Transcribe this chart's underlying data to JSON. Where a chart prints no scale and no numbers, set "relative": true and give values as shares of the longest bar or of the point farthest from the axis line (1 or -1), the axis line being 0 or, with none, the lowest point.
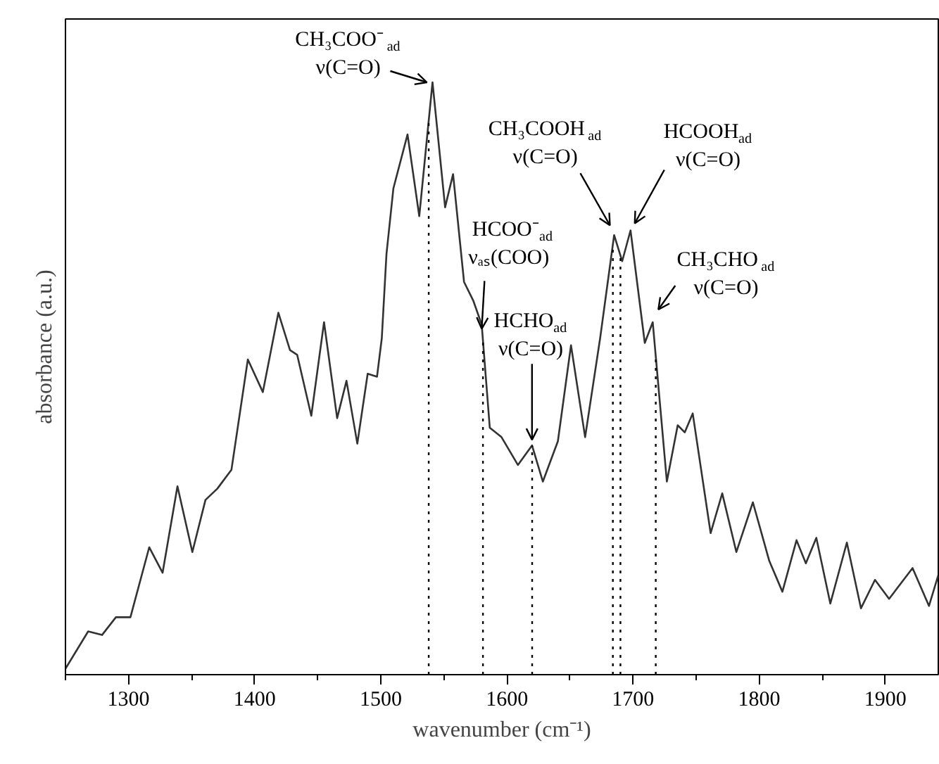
{
  "chart_data": {
    "type": "line",
    "relative": true,
    "xlabel": "wavenumber (cm⁻¹)",
    "ylabel": "absorbance (a.u.)",
    "xlim": [
      1250,
      1942
    ],
    "xticks": [
      {
        "value": 1250,
        "label": null
      },
      1300,
      {
        "value": 1350,
        "label": null
      },
      1400,
      {
        "value": 1450,
        "label": null
      },
      1500,
      {
        "value": 1550,
        "label": null
      },
      1600,
      {
        "value": 1650,
        "label": null
      },
      1700,
      {
        "value": 1750,
        "label": null
      },
      1800,
      {
        "value": 1850,
        "label": null
      },
      1900
    ],
    "grid": false,
    "marker": "none",
    "line_style": "solid",
    "series": [
      {
        "color": "#333333",
        "x": [
          1250,
          1268,
          1279,
          1290,
          1301.5,
          1316.4,
          1327,
          1338.8,
          1350.6,
          1361,
          1370.4,
          1381.6,
          1394.6,
          1406.5,
          1418.8,
          1428,
          1433.7,
          1444.9,
          1455,
          1465.4,
          1472.8,
          1481.4,
          1489.6,
          1497,
          1500.8,
          1504.5,
          1510,
          1521.2,
          1530.5,
          1541,
          1551,
          1557.3,
          1566,
          1573.4,
          1580,
          1586.4,
          1595.7,
          1608.7,
          1619.9,
          1628.5,
          1640.4,
          1650.8,
          1662,
          1673.9,
          1685,
          1691.4,
          1698,
          1709.3,
          1715.6,
          1726.8,
          1735.4,
          1741,
          1747.3,
          1761.5,
          1770.7,
          1781.9,
          1795,
          1808,
          1818.4,
          1829.6,
          1837,
          1845.3,
          1856.4,
          1869.5,
          1880.7,
          1891.8,
          1903,
          1921.6,
          1934.6,
          1942
        ],
        "values": [
          0.01,
          0.073,
          0.067,
          0.097,
          0.097,
          0.215,
          0.172,
          0.318,
          0.207,
          0.295,
          0.314,
          0.346,
          0.532,
          0.477,
          0.611,
          0.548,
          0.54,
          0.437,
          0.595,
          0.433,
          0.496,
          0.39,
          0.508,
          0.503,
          0.568,
          0.71,
          0.821,
          0.912,
          0.774,
          1.0,
          0.789,
          0.845,
          0.663,
          0.631,
          0.591,
          0.417,
          0.401,
          0.354,
          0.387,
          0.326,
          0.394,
          0.556,
          0.401,
          0.568,
          0.742,
          0.698,
          0.75,
          0.56,
          0.595,
          0.326,
          0.421,
          0.409,
          0.441,
          0.239,
          0.306,
          0.207,
          0.291,
          0.192,
          0.14,
          0.227,
          0.188,
          0.231,
          0.12,
          0.223,
          0.112,
          0.16,
          0.128,
          0.18,
          0.116,
          0.168
        ]
      }
    ],
    "ref_lines": [
      {
        "axis": "x",
        "value": 1538,
        "line_style": "dotted"
      },
      {
        "axis": "x",
        "value": 1581,
        "line_style": "dotted"
      },
      {
        "axis": "x",
        "value": 1620,
        "line_style": "dotted"
      },
      {
        "axis": "x",
        "value": 1684,
        "line_style": "dotted"
      },
      {
        "axis": "x",
        "value": 1690,
        "line_style": "dotted"
      },
      {
        "axis": "x",
        "value": 1718,
        "line_style": "dotted"
      }
    ],
    "annotations": [
      {
        "text": "CH₃COO⁻$_{ad}$\nν(C=O)",
        "x": 1541,
        "y": 1.0
      },
      {
        "text": "HCOO⁻$_{ad}$\nνₐₛ(COO)",
        "x": 1580,
        "y": 0.591
      },
      {
        "text": "HCHO$_{ad}$\nν(C=O)",
        "x": 1619.9,
        "y": 0.387
      },
      {
        "text": "CH₃COOH$_{ad}$\nν(C=O)",
        "x": 1685,
        "y": 0.742
      },
      {
        "text": "HCOOH$_{ad}$\nν(C=O)",
        "x": 1698,
        "y": 0.75
      },
      {
        "text": "CH₃CHO$_{ad}$\nν(C=O)",
        "x": 1715.6,
        "y": 0.595
      }
    ]
  }
}
